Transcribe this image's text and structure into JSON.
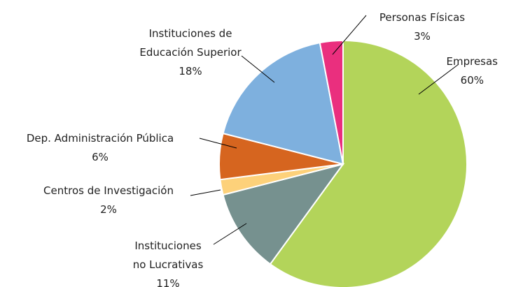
{
  "chart_data": {
    "type": "pie",
    "categories": [
      "Empresas",
      "Instituciones\nno Lucrativas",
      "Centros de Investigación",
      "Dep. Administración Pública",
      "Instituciones de\nEducación Superior",
      "Personas Físicas"
    ],
    "values": [
      60,
      11,
      2,
      6,
      18,
      3
    ],
    "value_labels": [
      "60%",
      "11%",
      "2%",
      "6%",
      "18%",
      "3%"
    ],
    "colors": [
      "#b3d45a",
      "#76918f",
      "#fdd17a",
      "#d6651f",
      "#7eb0de",
      "#ea2f7e"
    ]
  }
}
